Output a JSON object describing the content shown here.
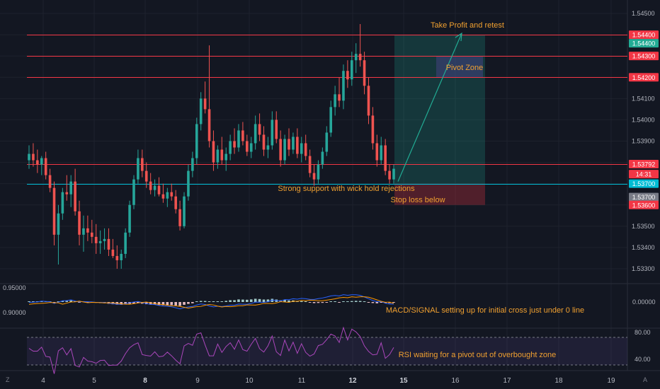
{
  "chart_data": [
    {
      "type": "candlestick",
      "x_ticks": [
        "4",
        "5",
        "8",
        "9",
        "10",
        "11",
        "12",
        "15",
        "16",
        "17",
        "18",
        "19"
      ],
      "y_ticks": [
        "1.54500",
        "1.54400",
        "1.54300",
        "1.54200",
        "1.54100",
        "1.54000",
        "1.53900",
        "1.53800",
        "1.53700",
        "1.53600",
        "1.53500",
        "1.53400",
        "1.53300"
      ],
      "ylim": [
        1.5325,
        1.5456
      ],
      "grid": true,
      "ohlc": [
        [
          1.5381,
          1.5388,
          1.5377,
          1.5384
        ],
        [
          1.5384,
          1.5389,
          1.5378,
          1.5381
        ],
        [
          1.5381,
          1.5386,
          1.5375,
          1.5379
        ],
        [
          1.5379,
          1.5383,
          1.5374,
          1.5382
        ],
        [
          1.5382,
          1.5385,
          1.5372,
          1.5374
        ],
        [
          1.5374,
          1.5377,
          1.5366,
          1.5368
        ],
        [
          1.5368,
          1.5371,
          1.5341,
          1.5346
        ],
        [
          1.5346,
          1.536,
          1.5332,
          1.5356
        ],
        [
          1.5356,
          1.5368,
          1.5353,
          1.5366
        ],
        [
          1.5366,
          1.5374,
          1.5362,
          1.5365
        ],
        [
          1.5365,
          1.5374,
          1.5359,
          1.5371
        ],
        [
          1.5371,
          1.5377,
          1.5355,
          1.5357
        ],
        [
          1.5357,
          1.5362,
          1.5341,
          1.5346
        ],
        [
          1.5346,
          1.5355,
          1.5338,
          1.5349
        ],
        [
          1.5349,
          1.5355,
          1.5343,
          1.5347
        ],
        [
          1.5347,
          1.5353,
          1.5342,
          1.5345
        ],
        [
          1.5345,
          1.5351,
          1.5337,
          1.5342
        ],
        [
          1.5342,
          1.5348,
          1.5337,
          1.5343
        ],
        [
          1.5343,
          1.5349,
          1.5339,
          1.5344
        ],
        [
          1.5344,
          1.5349,
          1.5336,
          1.5339
        ],
        [
          1.5339,
          1.5344,
          1.5335,
          1.5336
        ],
        [
          1.5336,
          1.5341,
          1.533,
          1.5334
        ],
        [
          1.5334,
          1.5339,
          1.533,
          1.5337
        ],
        [
          1.5337,
          1.5349,
          1.5335,
          1.5347
        ],
        [
          1.5347,
          1.5362,
          1.5345,
          1.536
        ],
        [
          1.536,
          1.5374,
          1.5358,
          1.5372
        ],
        [
          1.5372,
          1.5386,
          1.537,
          1.5382
        ],
        [
          1.5382,
          1.5386,
          1.5373,
          1.5376
        ],
        [
          1.5376,
          1.538,
          1.5368,
          1.5371
        ],
        [
          1.5371,
          1.5375,
          1.5365,
          1.5367
        ],
        [
          1.5367,
          1.5372,
          1.5364,
          1.5369
        ],
        [
          1.5369,
          1.5373,
          1.5364,
          1.5365
        ],
        [
          1.5365,
          1.537,
          1.5361,
          1.5363
        ],
        [
          1.5363,
          1.5368,
          1.5359,
          1.5366
        ],
        [
          1.5366,
          1.537,
          1.5362,
          1.5364
        ],
        [
          1.5364,
          1.5367,
          1.5356,
          1.5358
        ],
        [
          1.5358,
          1.5362,
          1.5348,
          1.535
        ],
        [
          1.535,
          1.5366,
          1.5349,
          1.5364
        ],
        [
          1.5364,
          1.5379,
          1.5362,
          1.5376
        ],
        [
          1.5376,
          1.5385,
          1.5373,
          1.5382
        ],
        [
          1.5382,
          1.5401,
          1.5379,
          1.5398
        ],
        [
          1.5398,
          1.5413,
          1.5395,
          1.541
        ],
        [
          1.541,
          1.5418,
          1.5403,
          1.5405
        ],
        [
          1.5405,
          1.5435,
          1.5387,
          1.539
        ],
        [
          1.539,
          1.5395,
          1.5376,
          1.538
        ],
        [
          1.538,
          1.5388,
          1.5377,
          1.5386
        ],
        [
          1.5386,
          1.5392,
          1.5379,
          1.5381
        ],
        [
          1.5381,
          1.5387,
          1.5376,
          1.5384
        ],
        [
          1.5384,
          1.5393,
          1.5381,
          1.539
        ],
        [
          1.539,
          1.5396,
          1.5384,
          1.5387
        ],
        [
          1.5387,
          1.5398,
          1.5385,
          1.5395
        ],
        [
          1.5395,
          1.5399,
          1.5388,
          1.539
        ],
        [
          1.539,
          1.5393,
          1.5383,
          1.5385
        ],
        [
          1.5385,
          1.5392,
          1.5382,
          1.5389
        ],
        [
          1.5389,
          1.5402,
          1.5386,
          1.5398
        ],
        [
          1.5398,
          1.5403,
          1.539,
          1.5393
        ],
        [
          1.5393,
          1.5397,
          1.5383,
          1.5386
        ],
        [
          1.5386,
          1.5392,
          1.5382,
          1.5388
        ],
        [
          1.5388,
          1.5404,
          1.5386,
          1.54
        ],
        [
          1.54,
          1.5404,
          1.5389,
          1.5391
        ],
        [
          1.5391,
          1.5395,
          1.5378,
          1.5381
        ],
        [
          1.5381,
          1.5393,
          1.5379,
          1.5391
        ],
        [
          1.5391,
          1.5396,
          1.5383,
          1.5386
        ],
        [
          1.5386,
          1.5394,
          1.5384,
          1.5392
        ],
        [
          1.5392,
          1.5396,
          1.5382,
          1.5384
        ],
        [
          1.5384,
          1.5392,
          1.538,
          1.5389
        ],
        [
          1.5389,
          1.5393,
          1.5381,
          1.5383
        ],
        [
          1.5383,
          1.5386,
          1.5373,
          1.5375
        ],
        [
          1.5375,
          1.5379,
          1.5369,
          1.5372
        ],
        [
          1.5372,
          1.5381,
          1.537,
          1.5379
        ],
        [
          1.5379,
          1.5387,
          1.5377,
          1.5385
        ],
        [
          1.5385,
          1.5397,
          1.5383,
          1.5394
        ],
        [
          1.5394,
          1.5409,
          1.5392,
          1.5406
        ],
        [
          1.5406,
          1.5416,
          1.5402,
          1.5412
        ],
        [
          1.5412,
          1.542,
          1.5406,
          1.5409
        ],
        [
          1.5409,
          1.5426,
          1.5405,
          1.5423
        ],
        [
          1.5423,
          1.5428,
          1.5415,
          1.5419
        ],
        [
          1.5419,
          1.5432,
          1.5416,
          1.5428
        ],
        [
          1.5428,
          1.5436,
          1.5422,
          1.5431
        ],
        [
          1.5431,
          1.5445,
          1.5425,
          1.5428
        ],
        [
          1.5428,
          1.5432,
          1.5412,
          1.5416
        ],
        [
          1.5416,
          1.542,
          1.5398,
          1.5402
        ],
        [
          1.5402,
          1.5406,
          1.5386,
          1.5389
        ],
        [
          1.5389,
          1.5393,
          1.5378,
          1.5381
        ],
        [
          1.5381,
          1.5392,
          1.5379,
          1.5388
        ],
        [
          1.5388,
          1.5391,
          1.5374,
          1.5376
        ],
        [
          1.5376,
          1.5379,
          1.537,
          1.5372
        ],
        [
          1.5372,
          1.5379,
          1.537,
          1.5377
        ]
      ],
      "horizontal_levels": [
        {
          "value": 1.544,
          "label": "1.54400",
          "color": "#f23645"
        },
        {
          "value": 1.543,
          "label": "1.54300",
          "color": "#f23645"
        },
        {
          "value": 1.542,
          "label": "1.54200",
          "color": "#f23645"
        },
        {
          "value": 1.53792,
          "label": "1.53792",
          "color": "#f23645"
        },
        {
          "value": 1.537,
          "label": "1.53700",
          "color": "#00bcd4"
        }
      ],
      "price_tags": [
        {
          "value": 1.544,
          "label": "1.54400",
          "color": "#f23645"
        },
        {
          "value": 1.5436,
          "label": "1.54400",
          "color": "#22ab94"
        },
        {
          "value": 1.543,
          "label": "1.54300",
          "color": "#f23645"
        },
        {
          "value": 1.542,
          "label": "1.54200",
          "color": "#f23645"
        },
        {
          "value": 1.53792,
          "label": "1.53792",
          "color": "#f23645"
        },
        {
          "value": 1.53745,
          "label": "14:31",
          "color": "#f23645"
        },
        {
          "value": 1.537,
          "label": "1.53700",
          "color": "#00bcd4"
        },
        {
          "value": 1.53637,
          "label": "1.53700",
          "color": "#787b86"
        },
        {
          "value": 1.536,
          "label": "1.53600",
          "color": "#f23645"
        }
      ],
      "position": {
        "entry": 1.537,
        "target": 1.544,
        "stop": 1.536
      },
      "zones": [
        {
          "label": "Pivot Zone",
          "from": 1.542,
          "to": 1.543
        }
      ],
      "annotations": [
        "Take Profit and retest",
        "Pivot Zone",
        "Strong support with wick hold rejections",
        "Stop loss below"
      ]
    },
    {
      "type": "line",
      "name": "MACD",
      "y_ticks_left": [
        "0.95000",
        "0.90000"
      ],
      "y_ticks_right": [
        "0.00000"
      ],
      "annotation": "MACD/SIGNAL setting up for initial cross just under 0 line",
      "series": [
        {
          "name": "MACD",
          "color": "#2962ff"
        },
        {
          "name": "Signal",
          "color": "#ff9800"
        }
      ]
    },
    {
      "type": "line",
      "name": "RSI",
      "y_ticks": [
        "80.00",
        "40.00"
      ],
      "bands": [
        70,
        30
      ],
      "annotation": "RSI waiting for a pivot out of overbought zone",
      "series": [
        {
          "name": "RSI",
          "color": "#ab47bc"
        }
      ]
    }
  ],
  "ui": {
    "tz_label": "Z",
    "auto_label": "A"
  }
}
